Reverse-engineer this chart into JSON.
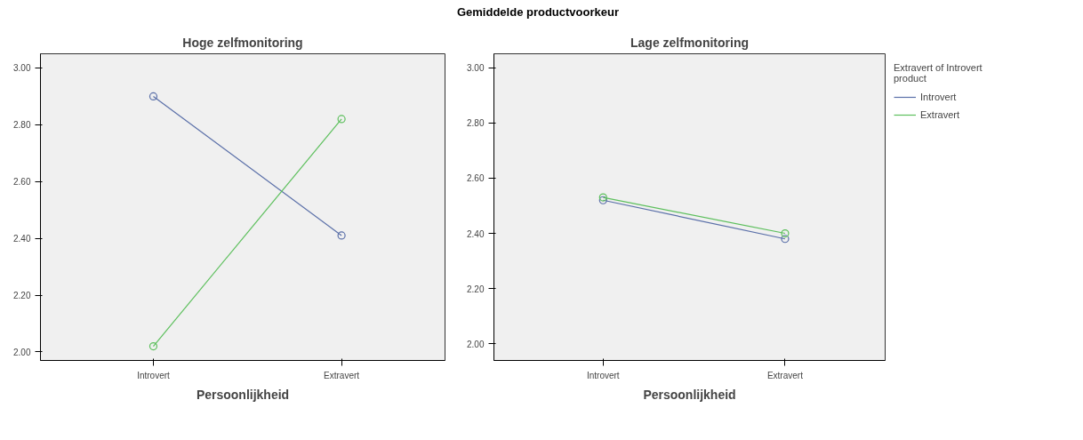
{
  "chart_data": [
    {
      "type": "line",
      "title": "Hoge zelfmonitoring",
      "xlabel": "Persoonlijkheid",
      "annotations": [
        "Gemiddelde productvoorkeur"
      ],
      "categories": [
        "Introvert",
        "Extravert"
      ],
      "series": [
        {
          "color": "#5a6fa8",
          "values": [
            2.9,
            2.41
          ]
        },
        {
          "color": "#5cbf5c",
          "values": [
            2.02,
            2.82
          ]
        }
      ],
      "ylim": [
        1.97,
        3.05
      ],
      "yticks": [
        {
          "value": 2.0,
          "label": "2.00"
        },
        {
          "value": 2.2,
          "label": "2.20"
        },
        {
          "value": 2.4,
          "label": "2.40"
        },
        {
          "value": 2.6,
          "label": "2.60"
        },
        {
          "value": 2.8,
          "label": "2.80"
        },
        {
          "value": 3.0,
          "label": "3.00"
        }
      ],
      "marker": "circle",
      "grid": false,
      "legend": false
    },
    {
      "type": "line",
      "title": "Lage zelfmonitoring",
      "xlabel": "Persoonlijkheid",
      "legend_title": "Extravert of Introvert\nproduct",
      "categories": [
        "Introvert",
        "Extravert"
      ],
      "series": [
        {
          "name": "Introvert",
          "color": "#5a6fa8",
          "values": [
            2.52,
            2.38
          ]
        },
        {
          "name": "Extravert",
          "color": "#5cbf5c",
          "values": [
            2.53,
            2.4
          ]
        }
      ],
      "ylim": [
        1.94,
        3.05
      ],
      "yticks": [
        {
          "value": 2.0,
          "label": "2.00"
        },
        {
          "value": 2.2,
          "label": "2.20"
        },
        {
          "value": 2.4,
          "label": "2.40"
        },
        {
          "value": 2.6,
          "label": "2.60"
        },
        {
          "value": 2.8,
          "label": "2.80"
        },
        {
          "value": 3.0,
          "label": "3.00"
        }
      ],
      "marker": "circle",
      "grid": false,
      "legend": "right"
    }
  ]
}
